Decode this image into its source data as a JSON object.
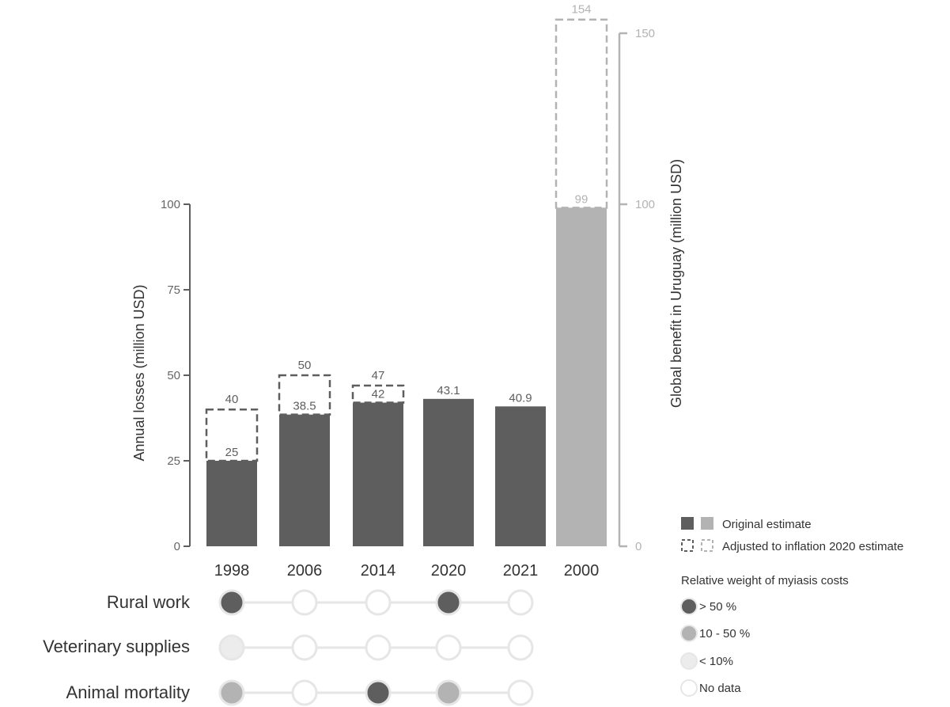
{
  "colors": {
    "dark": "#5e5e5e",
    "light": "#b3b3b3",
    "lighter": "#ececec",
    "axis_left": "#5e5e5e",
    "axis_right": "#b3b3b3",
    "connector": "#e6e6e6",
    "nodata_stroke": "#e6e6e6"
  },
  "chart_data": {
    "type": "bar",
    "left_axis": {
      "label": "Annual losses (million USD)",
      "ticks": [
        0,
        25,
        50,
        75,
        100
      ],
      "ylim": [
        0,
        100
      ]
    },
    "right_axis": {
      "label": "Global benefit in Uruguay (million USD)",
      "ticks": [
        0,
        100,
        150
      ],
      "ylim": [
        0,
        150
      ]
    },
    "categories": [
      "1998",
      "2006",
      "2014",
      "2020",
      "2021",
      "2000"
    ],
    "bars": [
      {
        "category": "1998",
        "axis": "left",
        "original": 25,
        "original_label": "25",
        "adjusted": 40,
        "adjusted_label": "40"
      },
      {
        "category": "2006",
        "axis": "left",
        "original": 38.5,
        "original_label": "38.5",
        "adjusted": 50,
        "adjusted_label": "50"
      },
      {
        "category": "2014",
        "axis": "left",
        "original": 42,
        "original_label": "42",
        "adjusted": 47,
        "adjusted_label": "47"
      },
      {
        "category": "2020",
        "axis": "left",
        "original": 43.1,
        "original_label": "43.1",
        "adjusted": null,
        "adjusted_label": null
      },
      {
        "category": "2021",
        "axis": "left",
        "original": 40.9,
        "original_label": "40.9",
        "adjusted": null,
        "adjusted_label": null
      },
      {
        "category": "2000",
        "axis": "right",
        "original": 99,
        "original_label": "99",
        "adjusted": 154,
        "adjusted_label": "154"
      }
    ],
    "matrix": {
      "rows": [
        {
          "label": "Rural work",
          "values": [
            ">50",
            "none",
            "none",
            ">50",
            "none"
          ]
        },
        {
          "label": "Veterinary supplies",
          "values": [
            "<10",
            "none",
            "none",
            "none",
            "none"
          ]
        },
        {
          "label": "Animal mortality",
          "values": [
            "10-50",
            "none",
            ">50",
            "10-50",
            "none"
          ]
        }
      ]
    },
    "legend": {
      "bars": [
        {
          "key": "original",
          "label": "Original estimate"
        },
        {
          "key": "adjusted",
          "label": "Adjusted to inflation 2020 estimate"
        }
      ],
      "weight_title": "Relative weight of myiasis costs",
      "weights": [
        {
          "key": ">50",
          "label": "> 50 %"
        },
        {
          "key": "10-50",
          "label": "10 - 50 %"
        },
        {
          "key": "<10",
          "label": "< 10%"
        },
        {
          "key": "none",
          "label": "No data"
        }
      ]
    }
  }
}
